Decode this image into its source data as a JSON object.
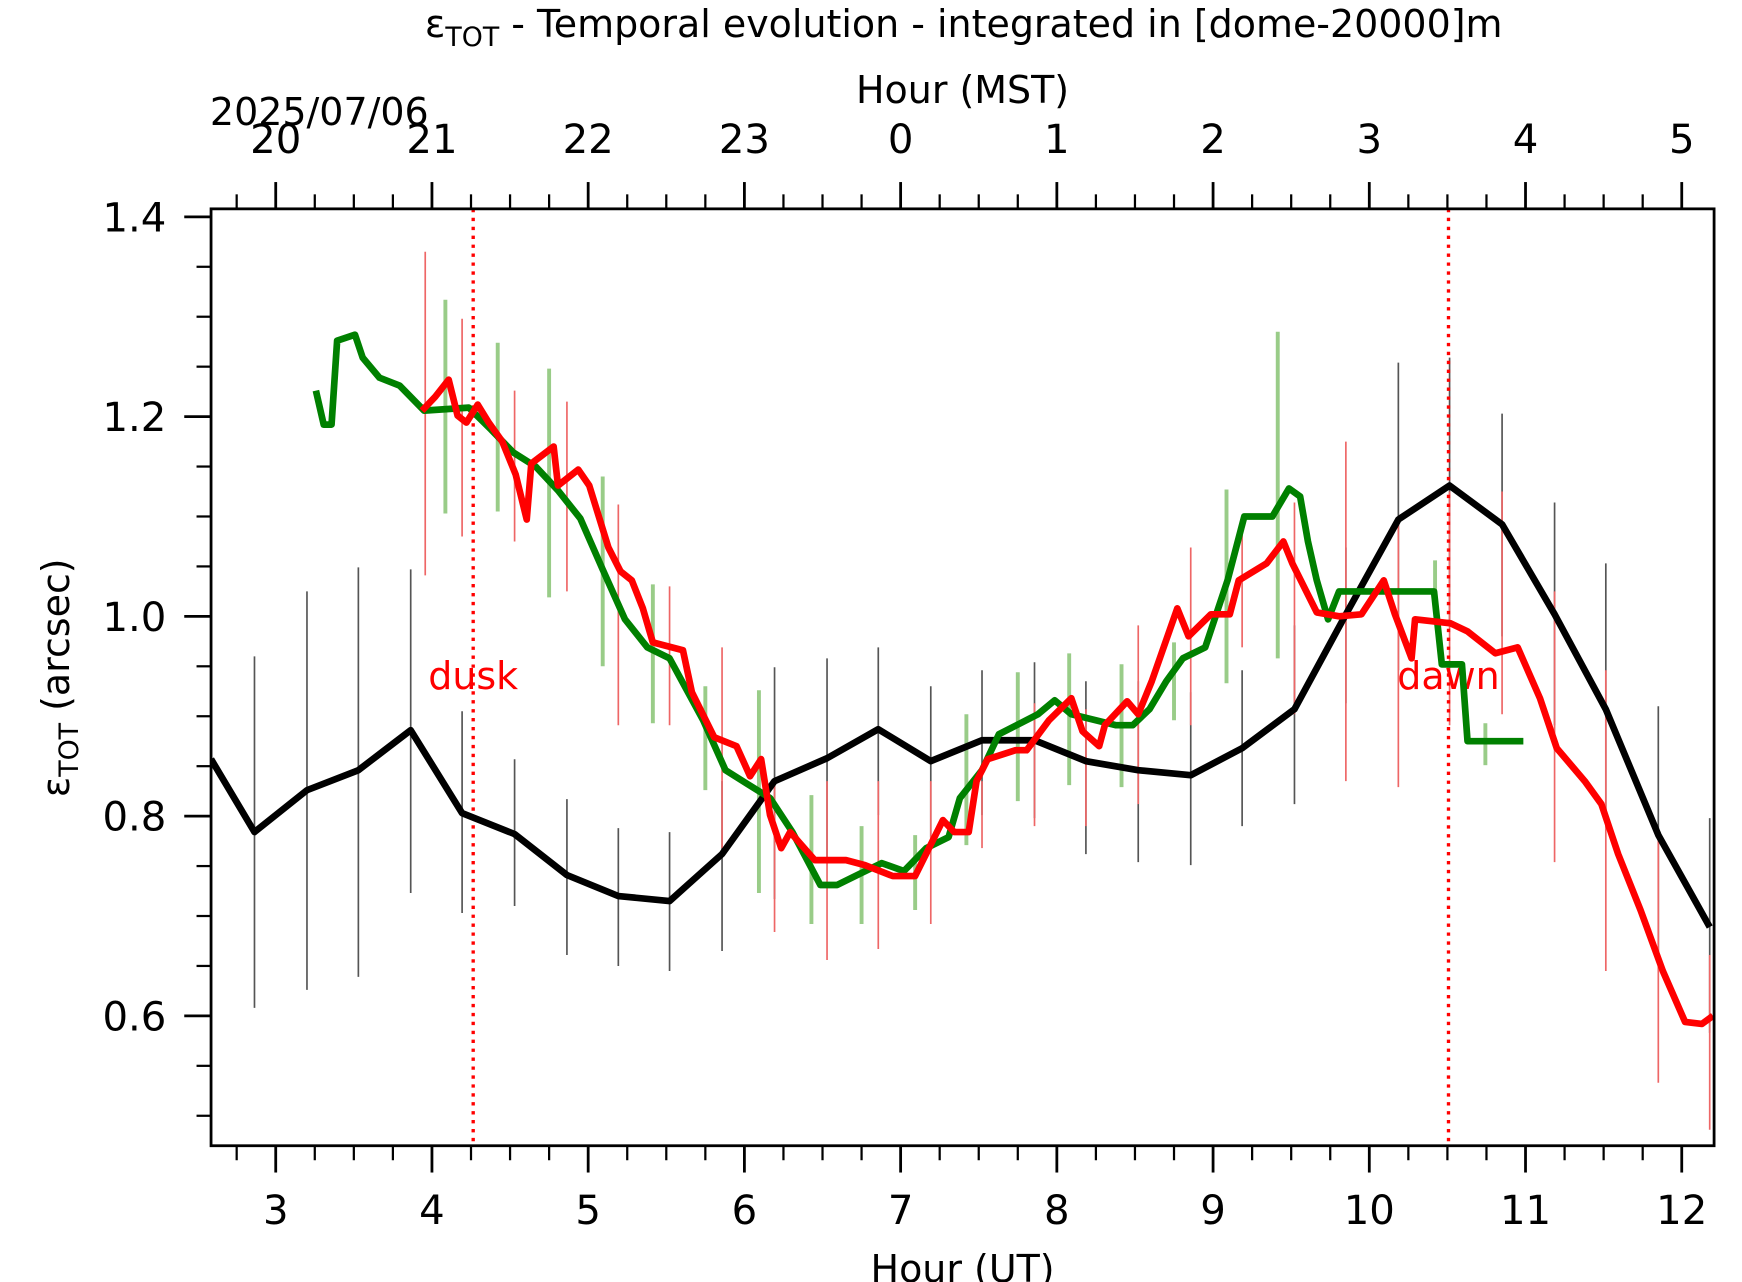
{
  "chart_data": {
    "type": "line",
    "title": {
      "symbol": "ε",
      "subscript": "TOT",
      "text": " - Temporal evolution - integrated in [dome-20000]m"
    },
    "date_label": "2025/07/06",
    "xlabel": "Hour (UT)",
    "x2label": "Hour (MST)",
    "ylabel": {
      "symbol": "ε",
      "subscript": "TOT",
      "text": " (arcsec)"
    },
    "xlim": [
      2.586,
      12.207
    ],
    "ylim": [
      0.47,
      1.408
    ],
    "xticks": [
      3,
      4,
      5,
      6,
      7,
      8,
      9,
      10,
      11,
      12
    ],
    "x2ticks": [
      {
        "value": 3,
        "label": "20"
      },
      {
        "value": 4,
        "label": "21"
      },
      {
        "value": 5,
        "label": "22"
      },
      {
        "value": 6,
        "label": "23"
      },
      {
        "value": 7,
        "label": "0"
      },
      {
        "value": 8,
        "label": "1"
      },
      {
        "value": 9,
        "label": "2"
      },
      {
        "value": 10,
        "label": "3"
      },
      {
        "value": 11,
        "label": "4"
      },
      {
        "value": 12,
        "label": "5"
      }
    ],
    "yticks": [
      0.6,
      0.8,
      {
        "value": 1,
        "label": "1.0"
      },
      1.2,
      1.4
    ],
    "annotations": [
      {
        "text": "dusk",
        "x": 4.264,
        "color": "#ff0000"
      },
      {
        "text": "dawn",
        "x": 10.507,
        "color": "#ff0000"
      }
    ],
    "series": [
      {
        "color": "#000000",
        "bar_color": "#555555",
        "x": [
          2.586,
          2.864,
          3.2,
          3.529,
          3.864,
          4.193,
          4.529,
          4.864,
          5.193,
          5.521,
          5.857,
          6.193,
          6.529,
          6.857,
          7.193,
          7.521,
          7.857,
          8.186,
          8.521,
          8.857,
          9.186,
          9.521,
          9.85,
          10.186,
          10.514,
          10.85,
          11.186,
          11.514,
          11.85,
          12.179
        ],
        "values": [
          0.857,
          0.784,
          0.826,
          0.846,
          0.886,
          0.803,
          0.782,
          0.741,
          0.72,
          0.715,
          0.762,
          0.835,
          0.858,
          0.887,
          0.855,
          0.876,
          0.876,
          0.855,
          0.846,
          0.841,
          0.868,
          0.907,
          1.002,
          1.097,
          1.131,
          1.092,
          1.002,
          0.907,
          0.781,
          0.689
        ],
        "bars": {
          "x": [
            2.864,
            3.2,
            3.529,
            3.864,
            4.193,
            4.529,
            4.864,
            5.193,
            5.521,
            5.857,
            6.193,
            6.529,
            6.857,
            7.193,
            7.521,
            7.857,
            8.186,
            8.521,
            8.857,
            9.186,
            9.521,
            9.85,
            10.186,
            10.514,
            10.85,
            11.186,
            11.514,
            11.85,
            12.179
          ],
          "low": [
            0.608,
            0.626,
            0.639,
            0.723,
            0.703,
            0.71,
            0.661,
            0.65,
            0.645,
            0.665,
            0.717,
            0.756,
            0.801,
            0.779,
            0.801,
            0.798,
            0.762,
            0.754,
            0.751,
            0.79,
            0.812,
            0.913,
            0.946,
            0.991,
            0.98,
            0.891,
            0.796,
            0.656,
            0.583
          ],
          "high": [
            0.96,
            1.025,
            1.049,
            1.047,
            0.905,
            0.857,
            0.817,
            0.788,
            0.784,
            0.835,
            0.949,
            0.958,
            0.969,
            0.93,
            0.946,
            0.954,
            0.935,
            0.935,
            0.924,
            0.946,
            0.991,
            1.069,
            1.254,
            1.259,
            1.203,
            1.114,
            1.053,
            0.91,
            0.798
          ]
        }
      },
      {
        "color": "#008000",
        "bar_color": "#99cc88",
        "x": [
          3.257,
          3.307,
          3.357,
          3.393,
          3.507,
          3.557,
          3.664,
          3.793,
          3.95,
          4.236,
          4.379,
          4.521,
          4.664,
          4.807,
          4.95,
          5.093,
          5.236,
          5.379,
          5.521,
          5.736,
          5.879,
          6.021,
          6.164,
          6.307,
          6.486,
          6.593,
          6.736,
          6.879,
          7.021,
          7.164,
          7.307,
          7.379,
          7.521,
          7.629,
          7.879,
          7.986,
          8.093,
          8.379,
          8.486,
          8.593,
          8.7,
          8.807,
          8.95,
          9.093,
          9.2,
          9.379,
          9.486,
          9.557,
          9.607,
          9.664,
          9.736,
          9.807,
          10.414,
          10.464,
          10.593,
          10.629,
          10.986
        ],
        "values": [
          1.226,
          1.192,
          1.192,
          1.276,
          1.282,
          1.259,
          1.239,
          1.231,
          1.206,
          1.209,
          1.187,
          1.164,
          1.15,
          1.126,
          1.098,
          1.047,
          0.997,
          0.969,
          0.958,
          0.896,
          0.846,
          0.832,
          0.818,
          0.784,
          0.731,
          0.731,
          0.742,
          0.753,
          0.745,
          0.768,
          0.779,
          0.818,
          0.846,
          0.882,
          0.902,
          0.916,
          0.902,
          0.891,
          0.891,
          0.907,
          0.935,
          0.958,
          0.969,
          1.036,
          1.1,
          1.1,
          1.128,
          1.12,
          1.075,
          1.036,
          0.997,
          1.025,
          1.025,
          0.952,
          0.952,
          0.875,
          0.875
        ],
        "bars": {
          "x": [
            4.086,
            4.421,
            4.75,
            5.093,
            5.414,
            5.75,
            6.093,
            6.429,
            6.75,
            7.093,
            7.421,
            7.75,
            8.079,
            8.414,
            8.75,
            9.086,
            9.414,
            10.421,
            10.743
          ],
          "low": [
            1.103,
            1.105,
            1.019,
            0.95,
            0.893,
            0.826,
            0.723,
            0.692,
            0.692,
            0.706,
            0.771,
            0.815,
            0.831,
            0.829,
            0.896,
            0.933,
            0.958,
            1.013,
            0.851
          ],
          "high": [
            1.317,
            1.274,
            1.248,
            1.14,
            1.032,
            0.93,
            0.926,
            0.821,
            0.79,
            0.781,
            0.902,
            0.944,
            0.963,
            0.952,
            0.974,
            1.127,
            1.285,
            1.056,
            0.893
          ]
        }
      },
      {
        "color": "#ff0000",
        "bar_color": "#ee6666",
        "x": [
          3.936,
          4.021,
          4.107,
          4.164,
          4.221,
          4.293,
          4.364,
          4.45,
          4.536,
          4.607,
          4.636,
          4.779,
          4.807,
          4.936,
          5.007,
          5.129,
          5.207,
          5.279,
          5.35,
          5.414,
          5.607,
          5.664,
          5.807,
          5.95,
          6.036,
          6.107,
          6.164,
          6.236,
          6.293,
          6.45,
          6.65,
          6.771,
          6.95,
          7.093,
          7.271,
          7.343,
          7.436,
          7.486,
          7.557,
          7.736,
          7.807,
          7.95,
          8.093,
          8.164,
          8.271,
          8.307,
          8.45,
          8.521,
          8.607,
          8.771,
          8.843,
          8.986,
          9.107,
          9.164,
          9.343,
          9.45,
          9.507,
          9.664,
          9.807,
          9.95,
          10.093,
          10.164,
          10.271,
          10.293,
          10.521,
          10.629,
          10.807,
          10.95,
          11.093,
          11.2,
          11.379,
          11.486,
          11.593,
          11.736,
          11.879,
          12.021,
          12.129,
          12.2
        ],
        "values": [
          1.206,
          1.22,
          1.237,
          1.201,
          1.194,
          1.212,
          1.194,
          1.175,
          1.142,
          1.097,
          1.153,
          1.17,
          1.131,
          1.147,
          1.131,
          1.069,
          1.045,
          1.036,
          1.008,
          0.974,
          0.966,
          0.924,
          0.879,
          0.87,
          0.84,
          0.857,
          0.801,
          0.768,
          0.784,
          0.756,
          0.756,
          0.751,
          0.74,
          0.74,
          0.796,
          0.784,
          0.784,
          0.835,
          0.857,
          0.866,
          0.866,
          0.896,
          0.918,
          0.885,
          0.87,
          0.891,
          0.915,
          0.902,
          0.935,
          1.008,
          0.98,
          1.002,
          1.002,
          1.036,
          1.053,
          1.075,
          1.053,
          1.004,
          1.0,
          1.002,
          1.036,
          1.002,
          0.958,
          0.997,
          0.993,
          0.985,
          0.963,
          0.969,
          0.918,
          0.868,
          0.835,
          0.812,
          0.762,
          0.706,
          0.645,
          0.594,
          0.592,
          0.6
        ],
        "bars": {
          "x": [
            3.957,
            4.193,
            4.529,
            4.864,
            5.193,
            5.521,
            5.857,
            6.193,
            6.529,
            6.857,
            7.193,
            7.521,
            7.857,
            8.186,
            8.521,
            8.857,
            9.186,
            9.521,
            9.85,
            10.186,
            10.514,
            10.85,
            11.186,
            11.514,
            11.85,
            12.179
          ],
          "low": [
            1.041,
            1.08,
            1.075,
            1.025,
            0.891,
            0.891,
            0.768,
            0.684,
            0.656,
            0.667,
            0.692,
            0.768,
            0.79,
            0.79,
            0.812,
            0.891,
            0.969,
            0.902,
            0.835,
            0.829,
            0.891,
            0.902,
            0.754,
            0.645,
            0.533,
            0.486
          ],
          "high": [
            1.365,
            1.298,
            1.226,
            1.215,
            1.112,
            1.03,
            0.969,
            0.835,
            0.835,
            0.835,
            0.835,
            0.835,
            0.913,
            0.907,
            0.991,
            1.069,
            1.092,
            1.114,
            1.175,
            1.092,
            1.125,
            1.125,
            1.025,
            0.946,
            0.779,
            0.661
          ]
        }
      }
    ]
  }
}
